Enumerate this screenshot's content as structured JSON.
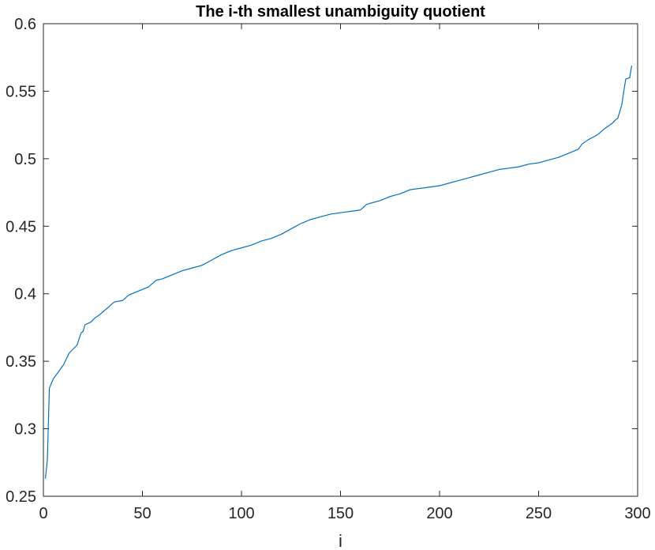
{
  "chart_data": {
    "type": "line",
    "title": "The i-th smallest unambiguity quotient",
    "xlabel": "i",
    "ylabel": "",
    "xlim": [
      0,
      300
    ],
    "ylim": [
      0.25,
      0.6
    ],
    "xticks": [
      0,
      50,
      100,
      150,
      200,
      250,
      300
    ],
    "xtick_labels": [
      "0",
      "50",
      "100",
      "150",
      "200",
      "250",
      "300"
    ],
    "yticks": [
      0.25,
      0.3,
      0.35,
      0.4,
      0.45,
      0.5,
      0.55,
      0.6
    ],
    "ytick_labels": [
      "0.25",
      "0.3",
      "0.35",
      "0.4",
      "0.45",
      "0.5",
      "0.55",
      "0.6"
    ],
    "grid": false,
    "line_color": "#0072BD",
    "axis_color": "#262626",
    "series": [
      {
        "x": [
          1,
          2,
          3,
          5,
          7,
          10,
          13,
          17,
          19,
          20,
          21,
          24,
          26,
          28,
          32,
          35,
          36,
          40,
          43,
          48,
          53,
          57,
          60,
          65,
          70,
          75,
          80,
          85,
          90,
          95,
          100,
          105,
          110,
          115,
          120,
          125,
          130,
          135,
          140,
          145,
          150,
          155,
          160,
          163,
          165,
          170,
          175,
          180,
          185,
          190,
          195,
          200,
          205,
          210,
          215,
          220,
          225,
          230,
          235,
          240,
          245,
          250,
          255,
          260,
          265,
          270,
          272,
          275,
          280,
          283,
          285,
          287,
          289,
          290,
          292,
          293,
          294,
          296,
          297
        ],
        "y": [
          0.263,
          0.277,
          0.33,
          0.337,
          0.341,
          0.347,
          0.356,
          0.362,
          0.371,
          0.372,
          0.377,
          0.379,
          0.382,
          0.384,
          0.389,
          0.393,
          0.394,
          0.395,
          0.399,
          0.402,
          0.405,
          0.41,
          0.411,
          0.414,
          0.417,
          0.419,
          0.421,
          0.425,
          0.429,
          0.432,
          0.434,
          0.436,
          0.439,
          0.441,
          0.444,
          0.448,
          0.452,
          0.455,
          0.457,
          0.459,
          0.46,
          0.461,
          0.462,
          0.466,
          0.467,
          0.469,
          0.472,
          0.474,
          0.477,
          0.478,
          0.479,
          0.48,
          0.482,
          0.484,
          0.486,
          0.488,
          0.49,
          0.492,
          0.493,
          0.494,
          0.496,
          0.497,
          0.499,
          0.501,
          0.504,
          0.507,
          0.511,
          0.514,
          0.518,
          0.522,
          0.524,
          0.526,
          0.529,
          0.53,
          0.54,
          0.55,
          0.559,
          0.56,
          0.569
        ]
      }
    ]
  }
}
